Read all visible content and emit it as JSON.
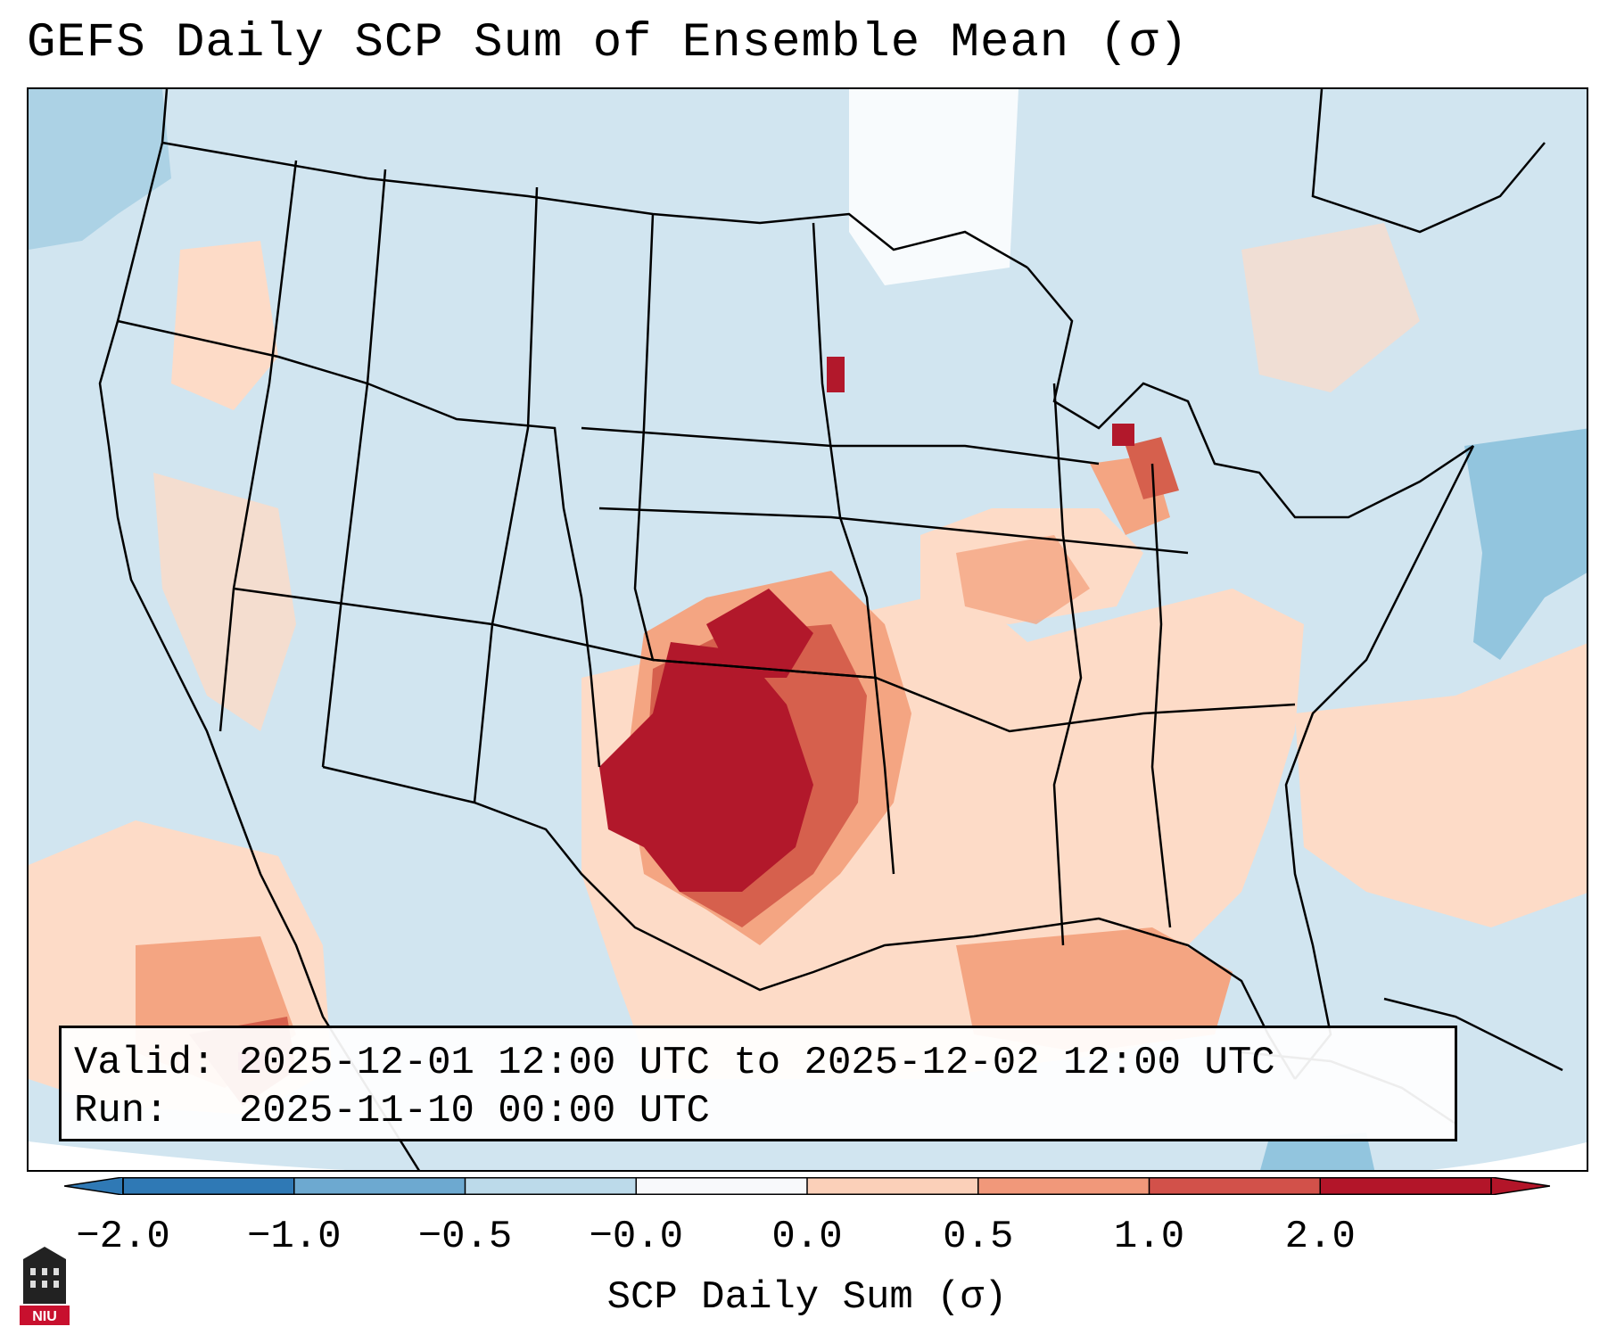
{
  "title": "GEFS Daily SCP Sum of Ensemble Mean (σ)",
  "info": {
    "valid_label": "Valid:",
    "valid_value": "2025-12-01 12:00 UTC to 2025-12-02 12:00 UTC",
    "run_label": "Run:",
    "run_value": "2025-11-10 00:00 UTC"
  },
  "colorbar": {
    "label": "SCP Daily Sum (σ)",
    "ticks": [
      "−2.0",
      "−1.0",
      "−0.5",
      "−0.0",
      "0.0",
      "0.5",
      "1.0",
      "2.0"
    ],
    "colors": [
      "#2f79b5",
      "#6da9d0",
      "#bcdaea",
      "#f8f9fb",
      "#fbd0b9",
      "#f1987a",
      "#d2514a",
      "#b31529"
    ],
    "extend": "both"
  },
  "map": {
    "ocean_color": "#cfe2ef",
    "outside_color": "#ffffff",
    "region": "Contiguous United States",
    "colors": {
      "neutral": "#d1e5f0",
      "light_pos": "#fddbc7",
      "mid_pos": "#f4a582",
      "high_pos": "#d6604d",
      "max_pos": "#b2182b",
      "light_neg": "#92c5de",
      "white": "#ffffff"
    }
  },
  "logo": {
    "text": "NIU",
    "icon": "niu-tower-logo-icon"
  }
}
